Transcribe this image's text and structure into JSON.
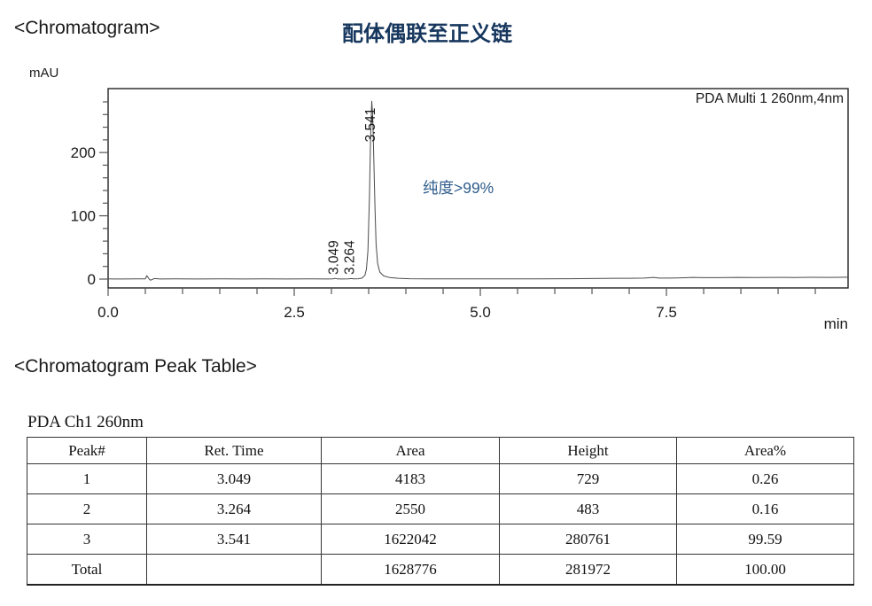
{
  "page": {
    "chromatogram_heading": "<Chromatogram>",
    "chinese_title": "配体偶联至正义链",
    "y_unit_label": "mAU",
    "x_unit_label": "min",
    "detector_label": "PDA Multi 1 260nm,4nm",
    "purity_annotation": "纯度>99%",
    "peak_table_heading": "<Chromatogram Peak Table>",
    "channel_label": "PDA Ch1 260nm"
  },
  "colors": {
    "title_blue": "#17375e",
    "annotation_blue": "#2e5c8c",
    "trace_gray": "#4a4a4a",
    "axis_black": "#222222",
    "tick_gray": "#555555"
  },
  "chart_data": {
    "type": "line",
    "title": "配体偶联至正义链",
    "detector": "PDA Multi 1 260nm,4nm",
    "xlabel": "min",
    "ylabel": "mAU",
    "xlim": [
      0,
      9.94
    ],
    "ylim": [
      -14,
      301
    ],
    "x_major_ticks": [
      0,
      2.5,
      5,
      7.5
    ],
    "x_major_labels": [
      "0.0",
      "2.5",
      "5.0",
      "7.5"
    ],
    "x_minor_step": 0.5,
    "y_major_ticks": [
      0,
      100,
      200
    ],
    "y_minor_step": 20,
    "y_minor_max": 280,
    "grid": false,
    "legend_position": "none",
    "peaks": [
      {
        "label": "3.049",
        "ret_time": 3.049,
        "height_mau": 0.73
      },
      {
        "label": "3.264",
        "ret_time": 3.264,
        "height_mau": 0.48
      },
      {
        "label": "3.541",
        "ret_time": 3.541,
        "height_mau": 280.8
      }
    ],
    "trace": [
      [
        0,
        0.3
      ],
      [
        0.2,
        0.1
      ],
      [
        0.4,
        0.3
      ],
      [
        0.5,
        0.4
      ],
      [
        0.52,
        5.5
      ],
      [
        0.55,
        0.2
      ],
      [
        0.57,
        -1.8
      ],
      [
        0.62,
        0.8
      ],
      [
        0.7,
        0.2
      ],
      [
        0.9,
        0.4
      ],
      [
        1.2,
        0.1
      ],
      [
        1.5,
        0.4
      ],
      [
        1.8,
        0.2
      ],
      [
        2.1,
        0.4
      ],
      [
        2.4,
        0.1
      ],
      [
        2.7,
        0.3
      ],
      [
        2.95,
        0.2
      ],
      [
        3.02,
        0.4
      ],
      [
        3.049,
        1.1
      ],
      [
        3.08,
        0.3
      ],
      [
        3.15,
        0.2
      ],
      [
        3.23,
        0.4
      ],
      [
        3.264,
        0.9
      ],
      [
        3.3,
        0.4
      ],
      [
        3.36,
        0.6
      ],
      [
        3.41,
        1.5
      ],
      [
        3.45,
        6
      ],
      [
        3.47,
        16
      ],
      [
        3.49,
        45
      ],
      [
        3.51,
        130
      ],
      [
        3.525,
        220
      ],
      [
        3.541,
        281
      ],
      [
        3.555,
        258
      ],
      [
        3.57,
        185
      ],
      [
        3.585,
        110
      ],
      [
        3.6,
        55
      ],
      [
        3.62,
        25
      ],
      [
        3.65,
        11
      ],
      [
        3.7,
        5
      ],
      [
        3.78,
        2.5
      ],
      [
        3.9,
        1.2
      ],
      [
        4.05,
        0.6
      ],
      [
        4.3,
        0.3
      ],
      [
        4.6,
        0.4
      ],
      [
        5.0,
        0.3
      ],
      [
        5.4,
        0.4
      ],
      [
        5.8,
        0.3
      ],
      [
        6.2,
        0.5
      ],
      [
        6.5,
        0.8
      ],
      [
        6.8,
        1.2
      ],
      [
        7.0,
        1.3
      ],
      [
        7.2,
        1.5
      ],
      [
        7.33,
        2.6
      ],
      [
        7.4,
        1.6
      ],
      [
        7.55,
        1.5
      ],
      [
        7.7,
        2.0
      ],
      [
        7.85,
        2.6
      ],
      [
        8.0,
        2.2
      ],
      [
        8.2,
        2.3
      ],
      [
        8.45,
        2.6
      ],
      [
        8.7,
        2.4
      ],
      [
        8.95,
        2.7
      ],
      [
        9.2,
        2.5
      ],
      [
        9.45,
        2.8
      ],
      [
        9.7,
        2.6
      ],
      [
        9.94,
        2.9
      ]
    ]
  },
  "peak_table": {
    "columns": [
      "Peak#",
      "Ret. Time",
      "Area",
      "Height",
      "Area%"
    ],
    "rows": [
      [
        "1",
        "3.049",
        "4183",
        "729",
        "0.26"
      ],
      [
        "2",
        "3.264",
        "2550",
        "483",
        "0.16"
      ],
      [
        "3",
        "3.541",
        "1622042",
        "280761",
        "99.59"
      ],
      [
        "Total",
        "",
        "1628776",
        "281972",
        "100.00"
      ]
    ]
  }
}
